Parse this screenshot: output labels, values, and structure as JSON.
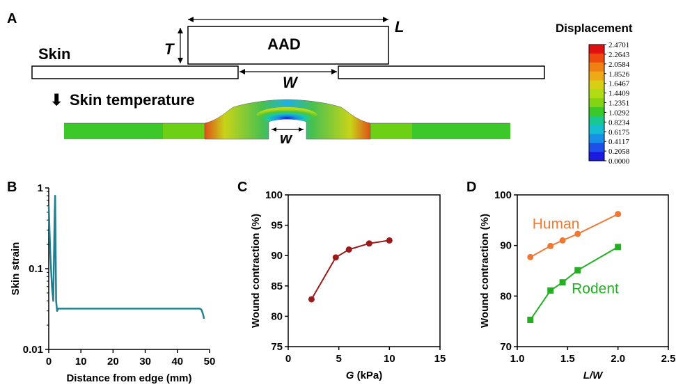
{
  "panel_a": {
    "panel_label": "A",
    "skin_label": "Skin",
    "aad_label": "AAD",
    "t_label": "T",
    "l_label": "L",
    "w_upper_label": "W",
    "w_lower_label": "w",
    "temp_label": "Skin temperature",
    "arrow_glyph": "⬇",
    "colorbar": {
      "title": "Displacement",
      "ticks": [
        "2.4701",
        "2.2643",
        "2.0584",
        "1.8526",
        "1.6467",
        "1.4409",
        "1.2351",
        "1.0292",
        "0.8234",
        "0.6175",
        "0.4117",
        "0.2058",
        "0.0000"
      ],
      "colors": [
        "#e01010",
        "#ee4a10",
        "#f07f14",
        "#eeaa16",
        "#d8cf14",
        "#b0dc14",
        "#84d414",
        "#3cc828",
        "#18c890",
        "#16bcd0",
        "#1890e8",
        "#1c50e8",
        "#1a1ae0"
      ]
    }
  },
  "chart_data": [
    {
      "panel_label": "B",
      "type": "line",
      "xlabel": "Distance from edge (mm)",
      "ylabel": "Skin strain",
      "xlim": [
        0,
        50
      ],
      "ylim": [
        0.01,
        1
      ],
      "yscale": "log",
      "xticks": [
        "0",
        "10",
        "20",
        "30",
        "40",
        "50"
      ],
      "yticks": [
        "0.01",
        "0.1",
        "1"
      ],
      "color": "#1f8090",
      "series": [
        {
          "x": [
            0,
            0.5,
            1.0,
            1.4,
            1.8,
            2.0,
            2.3,
            2.6,
            2.8,
            3.0,
            3.5,
            10,
            20,
            30,
            40,
            46,
            47,
            47.5,
            48,
            48.3
          ],
          "y": [
            0.6,
            0.15,
            0.06,
            0.04,
            0.38,
            0.8,
            0.04,
            0.03,
            0.031,
            0.032,
            0.032,
            0.032,
            0.032,
            0.032,
            0.032,
            0.032,
            0.032,
            0.031,
            0.027,
            0.024
          ]
        }
      ]
    },
    {
      "panel_label": "C",
      "type": "line",
      "xlabel": "G (kPa)",
      "ylabel": "Wound contraction (%)",
      "xlim": [
        0,
        15
      ],
      "ylim": [
        75,
        100
      ],
      "xticks": [
        "0",
        "5",
        "10",
        "15"
      ],
      "yticks": [
        "75",
        "80",
        "85",
        "90",
        "95",
        "100"
      ],
      "color": "#9b1a1a",
      "series": [
        {
          "x": [
            2.3,
            4.7,
            6.0,
            8.0,
            10.0
          ],
          "y": [
            82.8,
            89.7,
            91.0,
            92.0,
            92.5
          ]
        }
      ]
    },
    {
      "panel_label": "D",
      "type": "line",
      "xlabel": "L/W",
      "ylabel": "Wound contraction (%)",
      "xlim": [
        1.0,
        2.5
      ],
      "ylim": [
        70,
        100
      ],
      "xticks": [
        "1.0",
        "1.5",
        "2.0",
        "2.5"
      ],
      "yticks": [
        "70",
        "80",
        "90",
        "100"
      ],
      "series": [
        {
          "name": "Human",
          "color": "#f07830",
          "marker": "circle",
          "x": [
            1.13,
            1.33,
            1.45,
            1.6,
            2.0
          ],
          "y": [
            87.7,
            89.9,
            91.0,
            92.3,
            96.2
          ]
        },
        {
          "name": "Rodent",
          "color": "#22b022",
          "marker": "square",
          "x": [
            1.13,
            1.33,
            1.45,
            1.6,
            2.0
          ],
          "y": [
            75.3,
            81.1,
            82.7,
            85.1,
            89.7
          ]
        }
      ]
    }
  ]
}
